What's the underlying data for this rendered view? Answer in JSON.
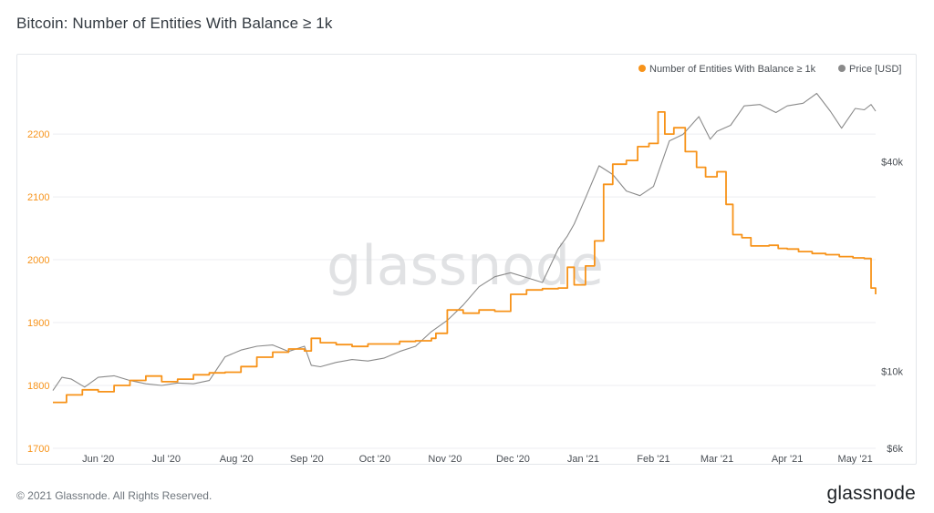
{
  "title": "Bitcoin: Number of Entities With Balance ≥ 1k",
  "footer": {
    "copyright": "© 2021 Glassnode. All Rights Reserved.",
    "logo": "glassnode"
  },
  "watermark": "glassnode",
  "colors": {
    "entities": "#f7931a",
    "price": "#8a8a8a",
    "grid": "#eceef0"
  },
  "chart_data": {
    "type": "line",
    "title": "Bitcoin: Number of Entities With Balance ≥ 1k",
    "legend_position": "top-right",
    "grid": true,
    "x_ticks": [
      "Jun '20",
      "Jul '20",
      "Aug '20",
      "Sep '20",
      "Oct '20",
      "Nov '20",
      "Dec '20",
      "Jan '21",
      "Feb '21",
      "Mar '21",
      "Apr '21",
      "May '21"
    ],
    "y_left": {
      "ticks": [
        1700,
        1800,
        1900,
        2000,
        2100,
        2200
      ],
      "range": [
        1700,
        2290
      ]
    },
    "y_right": {
      "scale": "log",
      "ticks": [
        "$6k",
        "$10k",
        "$40k"
      ],
      "tick_values": [
        6000,
        10000,
        40000
      ],
      "range": [
        6000,
        70000
      ]
    },
    "series": [
      {
        "name": "Number of Entities With Balance ≥ 1k",
        "axis": "left",
        "x": [
          "2020-05-12",
          "2020-05-18",
          "2020-05-25",
          "2020-06-01",
          "2020-06-08",
          "2020-06-15",
          "2020-06-22",
          "2020-06-29",
          "2020-07-06",
          "2020-07-13",
          "2020-07-20",
          "2020-07-27",
          "2020-08-03",
          "2020-08-10",
          "2020-08-17",
          "2020-08-24",
          "2020-08-31",
          "2020-09-03",
          "2020-09-07",
          "2020-09-14",
          "2020-09-21",
          "2020-09-28",
          "2020-10-05",
          "2020-10-12",
          "2020-10-19",
          "2020-10-26",
          "2020-10-28",
          "2020-11-02",
          "2020-11-09",
          "2020-11-16",
          "2020-11-23",
          "2020-11-30",
          "2020-12-07",
          "2020-12-14",
          "2020-12-21",
          "2020-12-25",
          "2020-12-28",
          "2021-01-02",
          "2021-01-06",
          "2021-01-10",
          "2021-01-14",
          "2021-01-20",
          "2021-01-25",
          "2021-01-30",
          "2021-02-03",
          "2021-02-06",
          "2021-02-10",
          "2021-02-15",
          "2021-02-20",
          "2021-02-24",
          "2021-03-01",
          "2021-03-05",
          "2021-03-08",
          "2021-03-12",
          "2021-03-16",
          "2021-03-20",
          "2021-03-24",
          "2021-03-28",
          "2021-04-01",
          "2021-04-06",
          "2021-04-12",
          "2021-04-18",
          "2021-04-24",
          "2021-04-30",
          "2021-05-05",
          "2021-05-08",
          "2021-05-10"
        ],
        "y": [
          1773,
          1785,
          1793,
          1790,
          1800,
          1808,
          1815,
          1806,
          1810,
          1817,
          1820,
          1821,
          1830,
          1845,
          1853,
          1858,
          1855,
          1875,
          1868,
          1865,
          1862,
          1866,
          1866,
          1870,
          1871,
          1875,
          1883,
          1920,
          1915,
          1920,
          1918,
          1945,
          1952,
          1954,
          1955,
          1988,
          1960,
          1990,
          2030,
          2120,
          2152,
          2158,
          2180,
          2185,
          2235,
          2200,
          2210,
          2172,
          2147,
          2132,
          2140,
          2088,
          2040,
          2035,
          2022,
          2022,
          2023,
          2018,
          2017,
          2013,
          2010,
          2008,
          2005,
          2003,
          2002,
          1955,
          1945
        ]
      },
      {
        "name": "Price [USD]",
        "axis": "right",
        "x": [
          "2020-05-12",
          "2020-05-16",
          "2020-05-20",
          "2020-05-26",
          "2020-06-01",
          "2020-06-08",
          "2020-06-15",
          "2020-06-22",
          "2020-06-29",
          "2020-07-06",
          "2020-07-13",
          "2020-07-20",
          "2020-07-27",
          "2020-08-03",
          "2020-08-10",
          "2020-08-17",
          "2020-08-24",
          "2020-08-31",
          "2020-09-03",
          "2020-09-07",
          "2020-09-14",
          "2020-09-21",
          "2020-09-28",
          "2020-10-05",
          "2020-10-12",
          "2020-10-19",
          "2020-10-26",
          "2020-11-02",
          "2020-11-09",
          "2020-11-16",
          "2020-11-23",
          "2020-11-30",
          "2020-12-07",
          "2020-12-14",
          "2020-12-21",
          "2020-12-25",
          "2020-12-28",
          "2021-01-02",
          "2021-01-08",
          "2021-01-14",
          "2021-01-20",
          "2021-01-26",
          "2021-02-01",
          "2021-02-08",
          "2021-02-14",
          "2021-02-21",
          "2021-02-26",
          "2021-03-01",
          "2021-03-07",
          "2021-03-13",
          "2021-03-20",
          "2021-03-27",
          "2021-04-01",
          "2021-04-08",
          "2021-04-14",
          "2021-04-20",
          "2021-04-25",
          "2021-05-01",
          "2021-05-05",
          "2021-05-08",
          "2021-05-10"
        ],
        "y": [
          8800,
          9600,
          9500,
          9000,
          9600,
          9700,
          9400,
          9200,
          9100,
          9250,
          9200,
          9400,
          11000,
          11500,
          11800,
          11900,
          11400,
          11800,
          10400,
          10300,
          10600,
          10800,
          10700,
          10900,
          11400,
          11800,
          13000,
          14000,
          15500,
          17500,
          18700,
          19200,
          18600,
          18000,
          22500,
          24500,
          26500,
          31500,
          39000,
          36800,
          33000,
          32000,
          34000,
          46000,
          48000,
          54000,
          46500,
          49000,
          51000,
          58000,
          58500,
          55500,
          58000,
          59000,
          63000,
          56000,
          50000,
          57000,
          56500,
          58500,
          56000
        ]
      }
    ]
  }
}
